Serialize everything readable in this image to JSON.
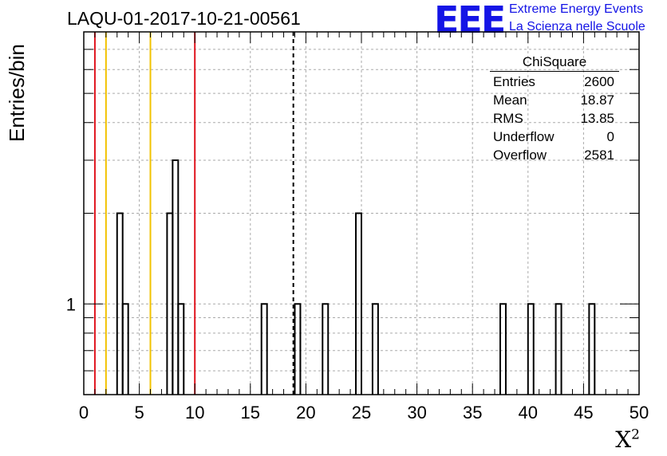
{
  "header": {
    "title": "LAQU-01-2017-10-21-00561"
  },
  "logo": {
    "mark": "EEE",
    "line1": "Extreme Energy Events",
    "line2": "La Scienza nelle Scuole",
    "color": "#1414e6"
  },
  "stats": {
    "title": "ChiSquare",
    "rows": [
      {
        "label": "Entries",
        "value": "2600"
      },
      {
        "label": "Mean",
        "value": "18.87"
      },
      {
        "label": "RMS",
        "value": "13.85"
      },
      {
        "label": "Underflow",
        "value": "0"
      },
      {
        "label": "Overflow",
        "value": "2581"
      }
    ]
  },
  "chart_data": {
    "type": "bar",
    "ylabel": "Entries/bin",
    "xlabel_base": "X",
    "xlabel_sup": "2",
    "xlim": [
      0,
      50
    ],
    "xticks": [
      0,
      5,
      10,
      15,
      20,
      25,
      30,
      35,
      40,
      45,
      50
    ],
    "y_scale": "log",
    "ylim": [
      0.5,
      8
    ],
    "yticks": [
      1
    ],
    "bin_width": 0.5,
    "bins": [
      {
        "x": 3.0,
        "count": 2
      },
      {
        "x": 3.5,
        "count": 1
      },
      {
        "x": 7.5,
        "count": 2
      },
      {
        "x": 8.0,
        "count": 3
      },
      {
        "x": 8.5,
        "count": 1
      },
      {
        "x": 16.0,
        "count": 1
      },
      {
        "x": 19.0,
        "count": 1
      },
      {
        "x": 21.5,
        "count": 1
      },
      {
        "x": 24.5,
        "count": 2
      },
      {
        "x": 26.0,
        "count": 1
      },
      {
        "x": 37.5,
        "count": 1
      },
      {
        "x": 40.0,
        "count": 1
      },
      {
        "x": 42.5,
        "count": 1
      },
      {
        "x": 45.5,
        "count": 1
      }
    ],
    "vlines": [
      {
        "x": 1,
        "color": "#e0141e",
        "style": "solid"
      },
      {
        "x": 2,
        "color": "#f2c200",
        "style": "solid"
      },
      {
        "x": 6,
        "color": "#f2c200",
        "style": "solid"
      },
      {
        "x": 10,
        "color": "#e0141e",
        "style": "solid"
      },
      {
        "x": 18.87,
        "color": "#000000",
        "style": "dashed"
      }
    ],
    "grid": true
  }
}
